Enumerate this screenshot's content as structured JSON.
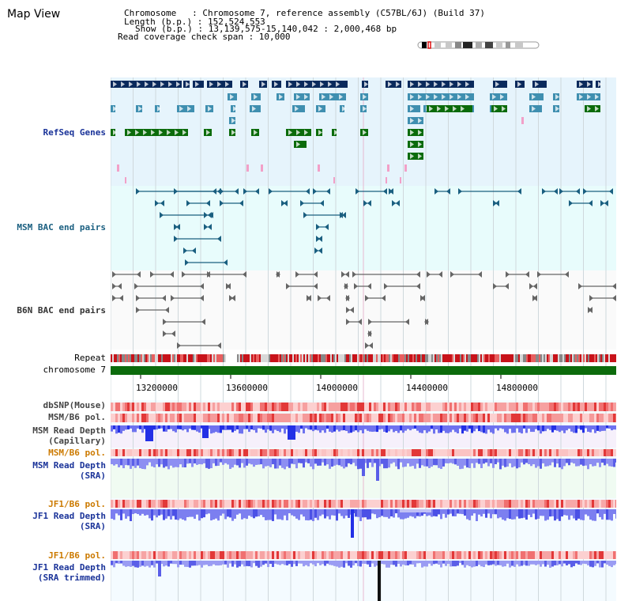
{
  "page_title": "Map View",
  "info": {
    "chromosome": "Chromosome   : Chromosome 7, reference assembly (C57BL/6J) (Build 37)",
    "length": "Length (b.p.) : 152,524,553",
    "show": "Show (b.p.) : 13,139,575-15,140,042 : 2,000,468 bp",
    "span": "Read coverage check span : 10,000"
  },
  "tracks": {
    "refseq": "RefSeq Genes",
    "msm_bac": "MSM BAC end pairs",
    "b6n_bac": "B6N BAC end pairs",
    "repeat": "Repeat",
    "chromosome": "chromosome 7",
    "dbsnp": "dbSNP(Mouse)",
    "msm_pol": "MSM/B6 pol.",
    "msm_depth_cap": "MSM Read Depth\n(Capillary)",
    "msm_pol2": "MSM/B6 pol.",
    "msm_depth_sra": "MSM Read Depth\n(SRA)",
    "jf1_pol": "JF1/B6 pol.",
    "jf1_depth_sra": "JF1 Read Depth\n(SRA)",
    "jf1_pol2": "JF1/B6 pol.",
    "jf1_depth_trim": "JF1 Read Depth\n(SRA trimmed)"
  },
  "axis": {
    "ticks": [
      "13200000",
      "13600000",
      "14000000",
      "14400000",
      "14800000"
    ]
  },
  "colors": {
    "refseq_bg": "#e6f4fc",
    "bac_bg": "#e8fcfc",
    "dark_gene": "#0a2a5c",
    "mid_gene": "#3f8fb0",
    "green_gene": "#0b6b0b",
    "label_blue": "#1a3399",
    "label_teal": "#1a5f80",
    "label_orange": "#cc7a00",
    "label_gray": "#333333"
  }
}
